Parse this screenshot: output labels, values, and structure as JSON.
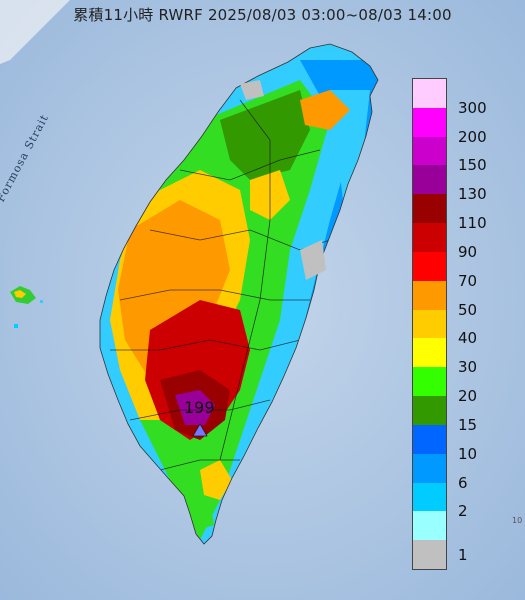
{
  "title": "累積11小時 RWRF 2025/08/03 03:00~08/03 14:00",
  "map_label": "Formosa Strait",
  "max_value_label": "199",
  "corner_mark": "10",
  "legend": {
    "labels": [
      "300",
      "200",
      "150",
      "130",
      "110",
      "90",
      "70",
      "50",
      "40",
      "30",
      "20",
      "15",
      "10",
      "6",
      "2",
      "1"
    ],
    "colors": [
      "#ffccff",
      "#ff00ff",
      "#cc00cc",
      "#990099",
      "#990000",
      "#cc0000",
      "#ff0000",
      "#ff9900",
      "#ffcc00",
      "#ffff00",
      "#33ff00",
      "#339900",
      "#0066ff",
      "#0099ff",
      "#00ccff",
      "#99ffff",
      "#c0c0c0"
    ]
  },
  "colors": {
    "sea": "#a9c4e3",
    "land": "#f1f2ee"
  }
}
